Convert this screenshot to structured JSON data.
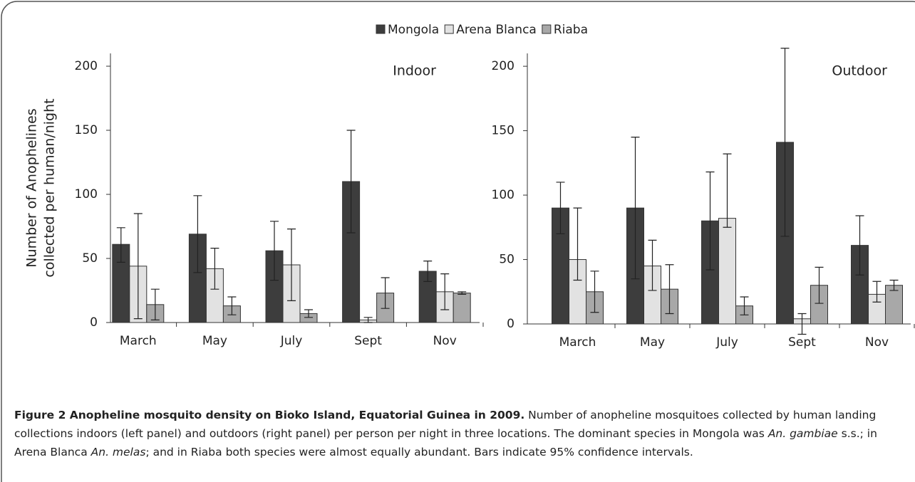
{
  "chart_data": [
    {
      "type": "bar",
      "title": "Indoor",
      "ylabel": [
        "Number of Anophelines",
        "collected per human/night"
      ],
      "categories": [
        "March",
        "May",
        "July",
        "Sept",
        "Nov"
      ],
      "series": [
        {
          "name": "Mongola",
          "color": "#3d3d3d",
          "values": [
            61,
            69,
            56,
            110,
            40
          ],
          "errors": [
            [
              14,
              13
            ],
            [
              30,
              30
            ],
            [
              23,
              23
            ],
            [
              40,
              40
            ],
            [
              8,
              8
            ]
          ]
        },
        {
          "name": "Arena Blanca",
          "color": "#e2e2e2",
          "values": [
            44,
            42,
            45,
            2,
            24
          ],
          "errors": [
            [
              41,
              41
            ],
            [
              16,
              16
            ],
            [
              28,
              28
            ],
            [
              2,
              2
            ],
            [
              14,
              14
            ]
          ]
        },
        {
          "name": "Riaba",
          "color": "#a8a8a8",
          "values": [
            14,
            13,
            7,
            23,
            23
          ],
          "errors": [
            [
              12,
              12
            ],
            [
              7,
              7
            ],
            [
              3,
              3
            ],
            [
              12,
              12
            ],
            [
              1,
              1
            ]
          ]
        }
      ],
      "ylim": [
        0,
        210
      ],
      "yticks": [
        0,
        50,
        100,
        150,
        200
      ]
    },
    {
      "type": "bar",
      "title": "Outdoor",
      "categories": [
        "March",
        "May",
        "July",
        "Sept",
        "Nov"
      ],
      "series": [
        {
          "values": [
            90,
            90,
            80,
            141,
            61
          ],
          "errors": [
            [
              20,
              20
            ],
            [
              55,
              55
            ],
            [
              38,
              38
            ],
            [
              73,
              73
            ],
            [
              23,
              23
            ]
          ]
        },
        {
          "values": [
            50,
            45,
            82,
            4,
            23
          ],
          "errors": [
            [
              16,
              40
            ],
            [
              19,
              20
            ],
            [
              7,
              50
            ],
            [
              12,
              4
            ],
            [
              6,
              10
            ]
          ]
        },
        {
          "values": [
            25,
            27,
            14,
            30,
            30
          ],
          "errors": [
            [
              16,
              16
            ],
            [
              19,
              19
            ],
            [
              7,
              7
            ],
            [
              14,
              14
            ],
            [
              4,
              4
            ]
          ]
        }
      ],
      "ylim": [
        0,
        210
      ],
      "yticks": [
        0,
        50,
        100,
        150,
        200
      ]
    }
  ],
  "caption": {
    "title": "Figure 2 Anopheline mosquito density on Bioko Island, Equatorial Guinea in 2009.",
    "text": [
      " Number of anopheline mosquitoes collected by human landing collections indoors (left panel) and outdoors (right panel) per person per night in three locations. The dominant species in Mongola was ",
      "An. gambiae",
      " s.s.; in Arena Blanca ",
      "An. melas",
      "; and in Riaba both species were almost equally abundant. Bars indicate 95% confidence intervals."
    ]
  }
}
